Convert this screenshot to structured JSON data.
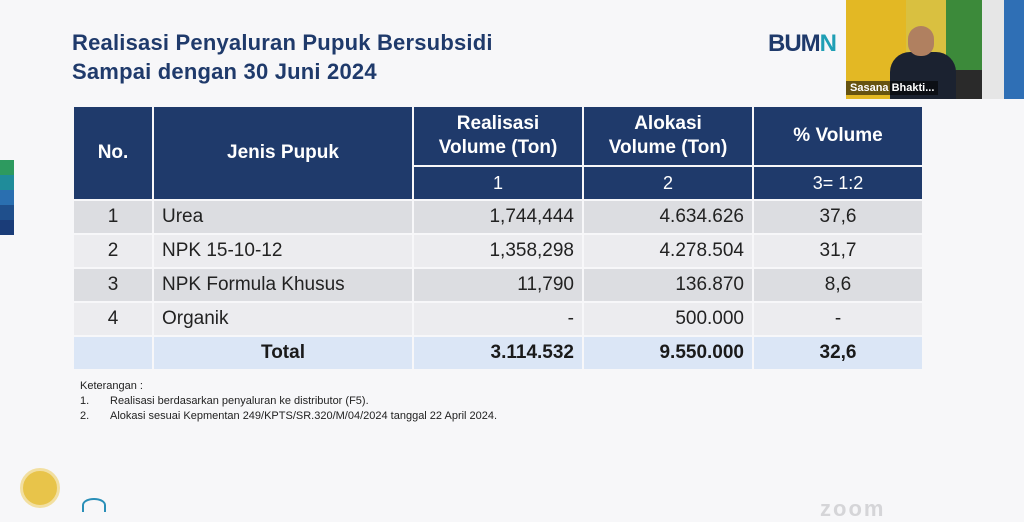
{
  "title": {
    "line1": "Realisasi Penyaluran Pupuk Bersubsidi",
    "line2": "Sampai dengan 30 Juni 2024"
  },
  "logo": {
    "text_main": "BUM",
    "text_accent": "N"
  },
  "video": {
    "name_tag": "Sasana Bhakti..."
  },
  "colors": {
    "header": "#1f3a6b",
    "row_odd": "#dcdde1",
    "row_even": "#ececef",
    "total_row": "#dbe6f6",
    "sidebar_stripes": [
      "#2d9a5f",
      "#1f8c9a",
      "#2a6fb0",
      "#1f4f8c",
      "#1a3c78"
    ]
  },
  "table": {
    "headers": {
      "no": "No.",
      "jenis": "Jenis Pupuk",
      "realisasi_l1": "Realisasi",
      "realisasi_l2": "Volume (Ton)",
      "alokasi_l1": "Alokasi",
      "alokasi_l2": "Volume (Ton)",
      "persen": "% Volume"
    },
    "subheaders": {
      "realisasi": "1",
      "alokasi": "2",
      "persen": "3= 1:2"
    },
    "rows": [
      {
        "no": "1",
        "jenis": "Urea",
        "realisasi": "1,744,444",
        "alokasi": "4.634.626",
        "persen": "37,6"
      },
      {
        "no": "2",
        "jenis": "NPK 15-10-12",
        "realisasi": "1,358,298",
        "alokasi": "4.278.504",
        "persen": "31,7"
      },
      {
        "no": "3",
        "jenis": "NPK Formula Khusus",
        "realisasi": "11,790",
        "alokasi": "136.870",
        "persen": "8,6"
      },
      {
        "no": "4",
        "jenis": "Organik",
        "realisasi": "-",
        "alokasi": "500.000",
        "persen": "-"
      }
    ],
    "total": {
      "label": "Total",
      "realisasi": "3.114.532",
      "alokasi": "9.550.000",
      "persen": "32,6"
    }
  },
  "notes": {
    "heading": "Keterangan :",
    "items": [
      {
        "num": "1.",
        "text": "Realisasi berdasarkan penyaluran ke distributor (F5)."
      },
      {
        "num": "2.",
        "text": "Alokasi sesuai Kepmentan 249/KPTS/SR.320/M/04/2024 tanggal 22 April 2024."
      }
    ]
  },
  "watermark": "zoom"
}
